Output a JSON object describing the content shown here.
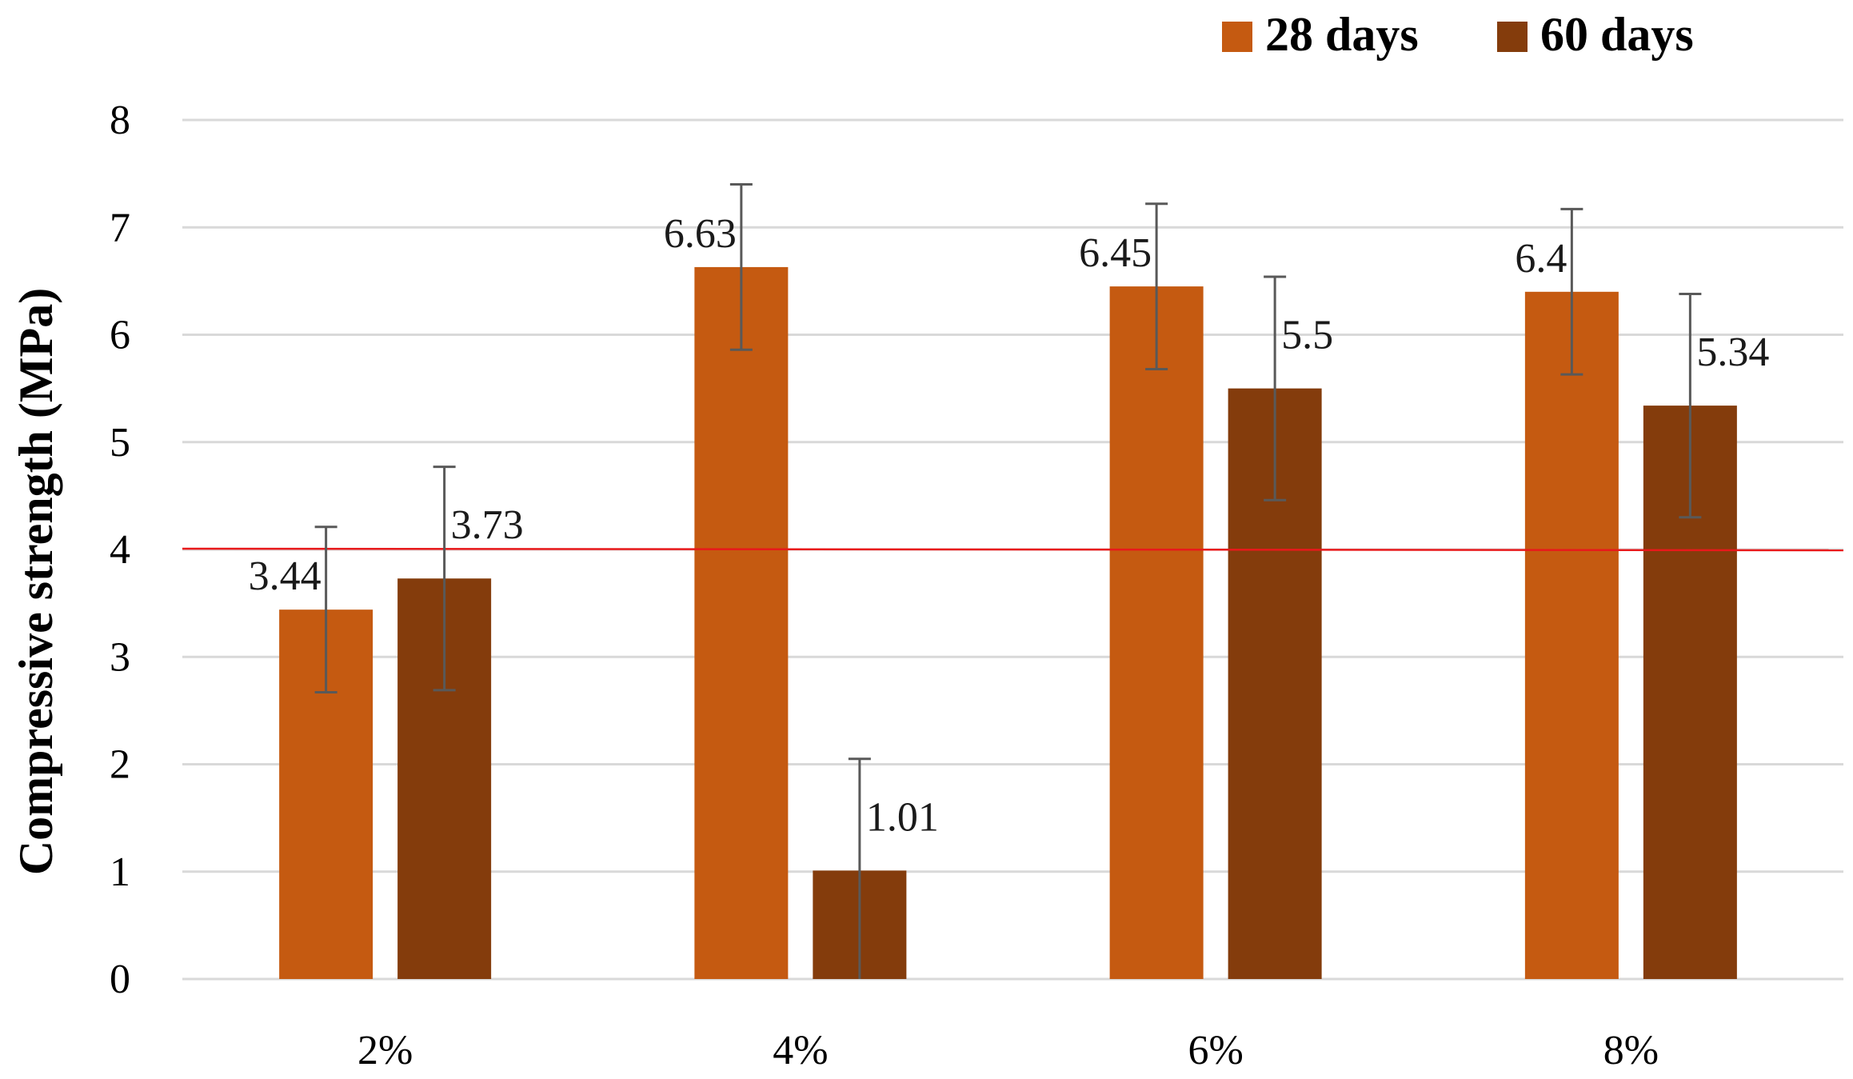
{
  "chart_data": {
    "type": "bar",
    "title": "",
    "xlabel": "",
    "ylabel": "Compressive strength (MPa)",
    "ylim": [
      0,
      8
    ],
    "yticks": [
      0,
      1,
      2,
      3,
      4,
      5,
      6,
      7,
      8
    ],
    "grid": true,
    "legend_position": "top-right",
    "categories": [
      "2%",
      "4%",
      "6%",
      "8%"
    ],
    "series": [
      {
        "name": "28 days",
        "color": "#c55a11",
        "values": [
          3.44,
          6.63,
          6.45,
          6.4
        ],
        "labels": [
          "3.44",
          "6.63",
          "6.45",
          "6.4"
        ],
        "error": [
          0.77,
          0.77,
          0.77,
          0.77
        ]
      },
      {
        "name": "60 days",
        "color": "#843c0c",
        "values": [
          3.73,
          1.01,
          5.5,
          5.34
        ],
        "labels": [
          "3.73",
          "1.01",
          "5.5",
          "5.34"
        ],
        "error": [
          1.04,
          1.04,
          1.04,
          1.04
        ]
      }
    ],
    "reference_line": {
      "value": 4,
      "color": "#e8191b"
    },
    "gridline_color": "#d9d9d9",
    "errorbar_color": "#595959"
  }
}
